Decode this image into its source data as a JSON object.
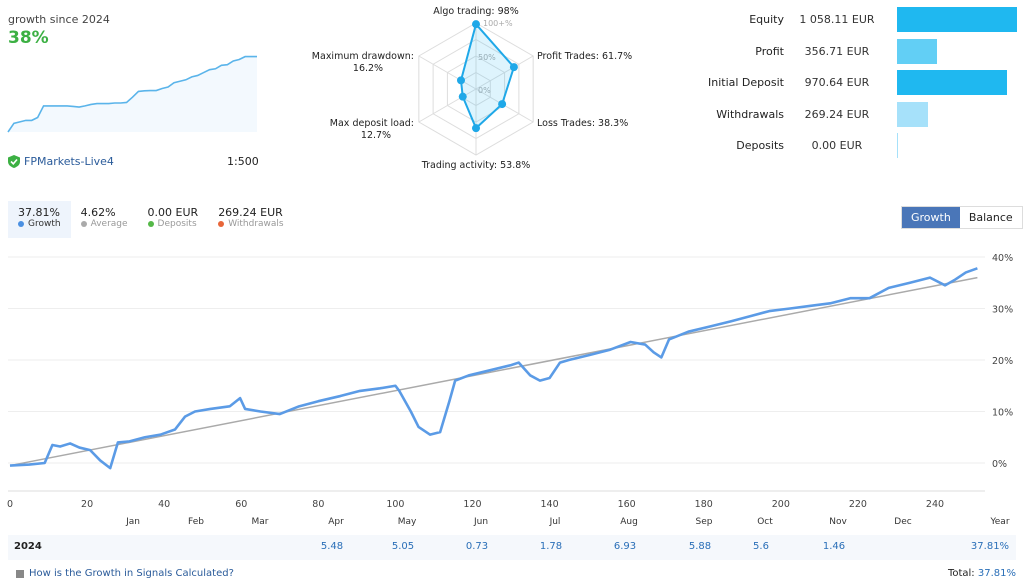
{
  "summary": {
    "growth_caption": "growth since 2024",
    "growth_value": "38%",
    "server": "FPMarkets-Live4",
    "leverage": "1:500",
    "sparkline": [
      0,
      3,
      3.5,
      4,
      4,
      5,
      9,
      9,
      9,
      9,
      9,
      8.8,
      8.6,
      9,
      9.5,
      9.8,
      9.8,
      9.8,
      10,
      10,
      10.2,
      12,
      14,
      14.2,
      14.3,
      14.3,
      15,
      15.5,
      17,
      17.5,
      18,
      19,
      19.5,
      20.5,
      21.5,
      21.8,
      23,
      23.2,
      24.5,
      25,
      26,
      26,
      26
    ]
  },
  "radar": {
    "scale_labels": [
      "100+%",
      "50%",
      "0%"
    ],
    "axes": [
      {
        "label": "Algo trading: 98%",
        "value": 98
      },
      {
        "label": "Profit Trades: 61.7%",
        "value": 61.7
      },
      {
        "label": "Loss Trades: 38.3%",
        "value": 38.3
      },
      {
        "label": "Trading activity: 53.8%",
        "value": 53.8
      },
      {
        "label_line1": "Max deposit load:",
        "label_line2": "12.7%",
        "value": 12.7
      },
      {
        "label_line1": "Maximum drawdown:",
        "label_line2": "16.2%",
        "value": 16.2
      }
    ]
  },
  "stats": [
    {
      "label": "Equity",
      "value": "1 058.11 EUR",
      "amount": 1058.11,
      "color": "#1fb8f0"
    },
    {
      "label": "Profit",
      "value": "356.71 EUR",
      "amount": 356.71,
      "color": "#62cff5"
    },
    {
      "label": "Initial Deposit",
      "value": "970.64 EUR",
      "amount": 970.64,
      "color": "#1fb8f0"
    },
    {
      "label": "Withdrawals",
      "value": "269.24 EUR",
      "amount": 269.24,
      "color": "#a6e1fa"
    },
    {
      "label": "Deposits",
      "value": "0.00 EUR",
      "amount": 0,
      "color": "#a6e1fa"
    }
  ],
  "tabs": [
    {
      "value": "37.81%",
      "label": "Growth",
      "color": "#4a90e2"
    },
    {
      "value": "4.62%",
      "label": "Average",
      "color": "#aaaaaa"
    },
    {
      "value": "0.00 EUR",
      "label": "Deposits",
      "color": "#55b848"
    },
    {
      "value": "269.24 EUR",
      "label": "Withdrawals",
      "color": "#e8663a"
    }
  ],
  "toggle": {
    "growth": "Growth",
    "balance": "Balance"
  },
  "chart_data": {
    "type": "line",
    "xlim": [
      0,
      252
    ],
    "ylim": [
      -2,
      40
    ],
    "x_ticks": [
      0,
      20,
      40,
      60,
      80,
      100,
      120,
      140,
      160,
      180,
      200,
      220,
      240
    ],
    "y_ticks": [
      0,
      10,
      20,
      30,
      40
    ],
    "y_tick_labels": [
      "0%",
      "10%",
      "20%",
      "30%",
      "40%"
    ],
    "grid": true,
    "series": [
      {
        "color": "#5b9be6",
        "points": [
          [
            0,
            -0.5
          ],
          [
            5,
            -0.3
          ],
          [
            9,
            0
          ],
          [
            11,
            3.5
          ],
          [
            13,
            3.2
          ],
          [
            15.6,
            3.8
          ],
          [
            18,
            3
          ],
          [
            20.8,
            2.5
          ],
          [
            23.4,
            0.5
          ],
          [
            26,
            -1
          ],
          [
            28,
            4
          ],
          [
            31,
            4.2
          ],
          [
            35,
            5
          ],
          [
            39,
            5.5
          ],
          [
            42.8,
            6.5
          ],
          [
            45.4,
            9
          ],
          [
            48,
            10
          ],
          [
            52,
            10.5
          ],
          [
            57,
            11
          ],
          [
            59.7,
            12.6
          ],
          [
            61,
            10.5
          ],
          [
            65,
            10
          ],
          [
            70,
            9.5
          ],
          [
            75,
            11
          ],
          [
            80,
            12
          ],
          [
            85.7,
            13
          ],
          [
            90.8,
            14
          ],
          [
            96,
            14.5
          ],
          [
            100,
            15
          ],
          [
            101,
            14
          ],
          [
            104,
            10
          ],
          [
            106,
            7
          ],
          [
            109,
            5.5
          ],
          [
            111.6,
            6
          ],
          [
            114,
            12
          ],
          [
            115.5,
            16
          ],
          [
            119,
            17
          ],
          [
            124.5,
            18
          ],
          [
            130,
            19
          ],
          [
            132,
            19.5
          ],
          [
            135,
            17
          ],
          [
            137.5,
            16
          ],
          [
            140,
            16.5
          ],
          [
            142.7,
            19.5
          ],
          [
            145,
            20
          ],
          [
            150.5,
            21
          ],
          [
            155.7,
            22
          ],
          [
            161,
            23.5
          ],
          [
            164.8,
            23
          ],
          [
            167,
            21.5
          ],
          [
            169,
            20.5
          ],
          [
            171,
            24
          ],
          [
            176,
            25.5
          ],
          [
            181.6,
            26.5
          ],
          [
            187,
            27.5
          ],
          [
            192,
            28.5
          ],
          [
            197,
            29.5
          ],
          [
            202.4,
            30
          ],
          [
            207.5,
            30.5
          ],
          [
            212.8,
            31
          ],
          [
            218,
            32
          ],
          [
            223,
            32
          ],
          [
            228,
            34
          ],
          [
            233.5,
            35
          ],
          [
            238.7,
            36
          ],
          [
            242.6,
            34.5
          ],
          [
            245,
            35.5
          ],
          [
            248,
            37
          ],
          [
            251,
            37.8
          ]
        ]
      },
      {
        "color": "#aaaaaa",
        "points": [
          [
            0,
            -0.5
          ],
          [
            251,
            36
          ]
        ]
      }
    ]
  },
  "months": [
    "Jan",
    "Feb",
    "Mar",
    "Apr",
    "May",
    "Jun",
    "Jul",
    "Aug",
    "Sep",
    "Oct",
    "Nov",
    "Dec",
    "Year"
  ],
  "year_row": {
    "year": "2024",
    "values": [
      "",
      "",
      "",
      "5.48",
      "5.05",
      "0.73",
      "1.78",
      "6.93",
      "5.88",
      "5.6",
      "1.46",
      "",
      "37.81%"
    ]
  },
  "footer": {
    "help_link": "How is the Growth in Signals Calculated?",
    "total_label": "Total:",
    "total_value": "37.81%"
  }
}
